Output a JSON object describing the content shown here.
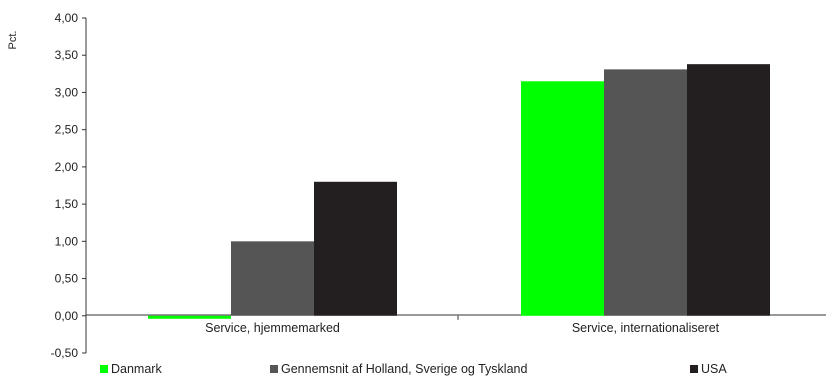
{
  "chart_data": {
    "type": "bar",
    "ylabel": "Pct.",
    "categories": [
      "Service, hjemmemarked",
      "Service, internationaliseret"
    ],
    "series": [
      {
        "name": "Danmark",
        "color": "#00ff00",
        "values": [
          -0.04,
          3.15
        ]
      },
      {
        "name": "Gennemsnit af Holland, Sverige og Tyskland",
        "color": "#555555",
        "values": [
          1.0,
          3.31
        ]
      },
      {
        "name": "USA",
        "color": "#231f20",
        "values": [
          1.8,
          3.38
        ]
      }
    ],
    "ylim": [
      -0.5,
      4.0
    ],
    "yticks": [
      "-0,50",
      "0,00",
      "0,50",
      "1,00",
      "1,50",
      "2,00",
      "2,50",
      "3,00",
      "3,50",
      "4,00"
    ],
    "grid": false,
    "legend_position": "bottom"
  }
}
